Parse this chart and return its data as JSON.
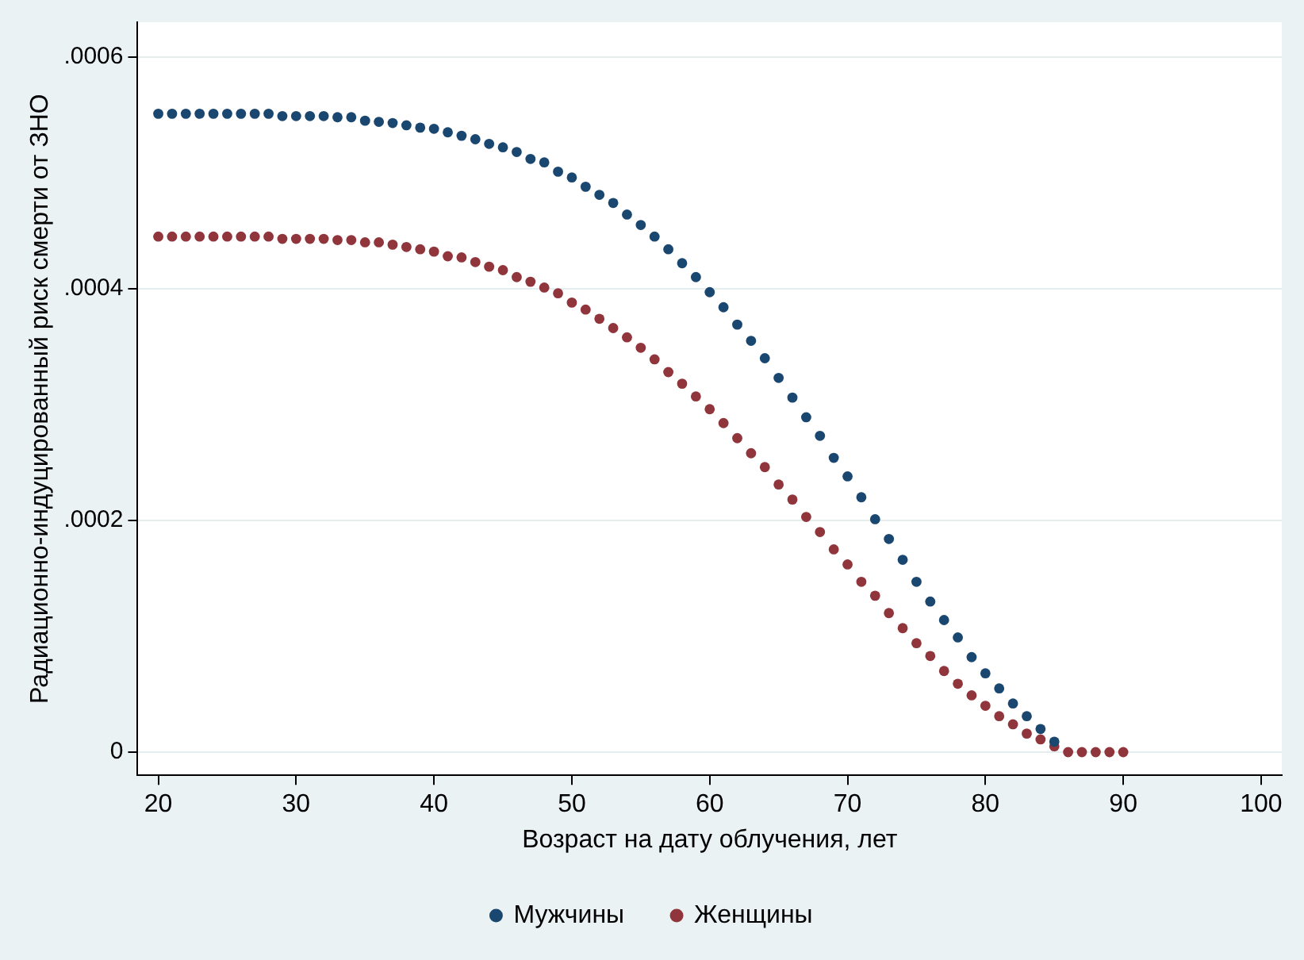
{
  "chart_data": {
    "type": "scatter",
    "xlabel": "Возраст на дату облучения, лет",
    "ylabel": "Радиационно-индуцированный риск смерти от ЗНО",
    "xlim": [
      18.5,
      101.5
    ],
    "xticks": [
      20,
      30,
      40,
      50,
      60,
      70,
      80,
      90,
      100
    ],
    "ylim": [
      -2e-05,
      0.00063
    ],
    "yticks": [
      {
        "value": 0,
        "label": "0"
      },
      {
        "value": 0.0002,
        "label": ".0002"
      },
      {
        "value": 0.0004,
        "label": ".0004"
      },
      {
        "value": 0.0006,
        "label": ".0006"
      }
    ],
    "grid": "y",
    "legend": "bottom",
    "marker": "circle",
    "series": [
      {
        "name": "Мужчины",
        "color": "#1a476f",
        "x": [
          20,
          21,
          22,
          23,
          24,
          25,
          26,
          27,
          28,
          29,
          30,
          31,
          32,
          33,
          34,
          35,
          36,
          37,
          38,
          39,
          40,
          41,
          42,
          43,
          44,
          45,
          46,
          47,
          48,
          49,
          50,
          51,
          52,
          53,
          54,
          55,
          56,
          57,
          58,
          59,
          60,
          61,
          62,
          63,
          64,
          65,
          66,
          67,
          68,
          69,
          70,
          71,
          72,
          73,
          74,
          75,
          76,
          77,
          78,
          79,
          80,
          81,
          82,
          83,
          84,
          85
        ],
        "values": [
          0.000551,
          0.000551,
          0.000551,
          0.000551,
          0.000551,
          0.000551,
          0.000551,
          0.000551,
          0.000551,
          0.000549,
          0.000549,
          0.000549,
          0.000549,
          0.000548,
          0.000548,
          0.000545,
          0.000544,
          0.000543,
          0.000541,
          0.000539,
          0.000538,
          0.000535,
          0.000532,
          0.000529,
          0.000525,
          0.000522,
          0.000518,
          0.000512,
          0.000509,
          0.000501,
          0.000496,
          0.000488,
          0.000481,
          0.000474,
          0.000464,
          0.000455,
          0.000445,
          0.000434,
          0.000422,
          0.00041,
          0.000397,
          0.000384,
          0.000369,
          0.000355,
          0.00034,
          0.000323,
          0.000306,
          0.000289,
          0.000273,
          0.000254,
          0.000238,
          0.00022,
          0.000201,
          0.000184,
          0.000166,
          0.000147,
          0.00013,
          0.000114,
          9.9e-05,
          8.2e-05,
          6.8e-05,
          5.5e-05,
          4.2e-05,
          3.1e-05,
          2e-05,
          9e-06
        ]
      },
      {
        "name": "Женщины",
        "color": "#90353b",
        "x": [
          20,
          21,
          22,
          23,
          24,
          25,
          26,
          27,
          28,
          29,
          30,
          31,
          32,
          33,
          34,
          35,
          36,
          37,
          38,
          39,
          40,
          41,
          42,
          43,
          44,
          45,
          46,
          47,
          48,
          49,
          50,
          51,
          52,
          53,
          54,
          55,
          56,
          57,
          58,
          59,
          60,
          61,
          62,
          63,
          64,
          65,
          66,
          67,
          68,
          69,
          70,
          71,
          72,
          73,
          74,
          75,
          76,
          77,
          78,
          79,
          80,
          81,
          82,
          83,
          84,
          85,
          86,
          87,
          88,
          89,
          90
        ],
        "values": [
          0.000445,
          0.000445,
          0.000445,
          0.000445,
          0.000445,
          0.000445,
          0.000445,
          0.000445,
          0.000445,
          0.000443,
          0.000443,
          0.000443,
          0.000443,
          0.000442,
          0.000442,
          0.00044,
          0.00044,
          0.000438,
          0.000436,
          0.000434,
          0.000432,
          0.000428,
          0.000427,
          0.000423,
          0.000419,
          0.000416,
          0.00041,
          0.000406,
          0.000401,
          0.000396,
          0.000388,
          0.000382,
          0.000374,
          0.000366,
          0.000358,
          0.000349,
          0.000339,
          0.000328,
          0.000318,
          0.000307,
          0.000296,
          0.000284,
          0.000271,
          0.000258,
          0.000246,
          0.000231,
          0.000218,
          0.000203,
          0.00019,
          0.000175,
          0.000162,
          0.000147,
          0.000135,
          0.00012,
          0.000107,
          9.4e-05,
          8.3e-05,
          7e-05,
          5.9e-05,
          4.9e-05,
          4e-05,
          3.1e-05,
          2.4e-05,
          1.6e-05,
          1.1e-05,
          5e-06,
          0,
          0,
          0,
          0,
          0
        ]
      }
    ]
  }
}
